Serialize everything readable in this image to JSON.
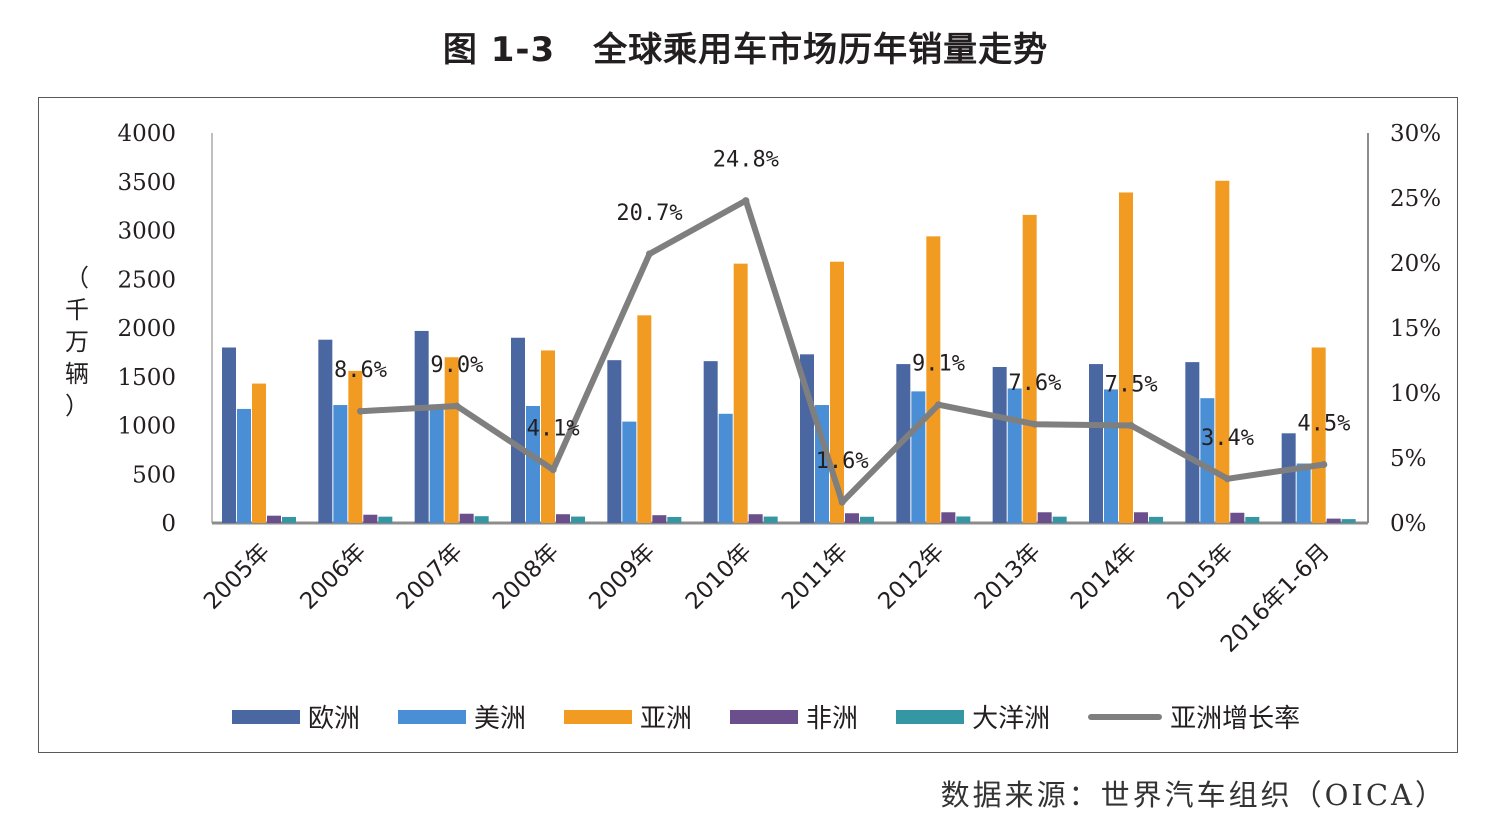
{
  "title": {
    "figure_no": "图 1-3",
    "text": "全球乘用车市场历年销量走势"
  },
  "y_axis_label": [
    "（",
    "千",
    "万",
    "辆",
    "）"
  ],
  "source": "数据来源：世界汽车组织（OICA）",
  "chart_data": {
    "type": "bar+line",
    "title": "全球乘用车市场历年销量走势",
    "categories": [
      "2005年",
      "2006年",
      "2007年",
      "2008年",
      "2009年",
      "2010年",
      "2011年",
      "2012年",
      "2013年",
      "2014年",
      "2015年",
      "2016年1-6月"
    ],
    "ylim": [
      0,
      4000
    ],
    "yticks": [
      "0",
      "500",
      "1000",
      "1500",
      "2000",
      "2500",
      "3000",
      "3500",
      "4000"
    ],
    "y2lim": [
      0,
      30
    ],
    "y2ticks": [
      "0%",
      "5%",
      "10%",
      "15%",
      "20%",
      "25%",
      "30%"
    ],
    "series": [
      {
        "name": "欧洲",
        "type": "bar",
        "color": "#4a67a2",
        "values": [
          1800,
          1880,
          1970,
          1900,
          1670,
          1660,
          1730,
          1630,
          1600,
          1630,
          1650,
          920
        ]
      },
      {
        "name": "美洲",
        "type": "bar",
        "color": "#4a8fd6",
        "values": [
          1170,
          1210,
          1190,
          1200,
          1040,
          1120,
          1210,
          1350,
          1380,
          1370,
          1280,
          610
        ]
      },
      {
        "name": "亚洲",
        "type": "bar",
        "color": "#f29b22",
        "values": [
          1430,
          1560,
          1700,
          1770,
          2130,
          2660,
          2680,
          2940,
          3160,
          3390,
          3510,
          1800
        ]
      },
      {
        "name": "非洲",
        "type": "bar",
        "color": "#6b4f8c",
        "values": [
          75,
          85,
          95,
          90,
          80,
          90,
          100,
          110,
          110,
          110,
          105,
          45
        ]
      },
      {
        "name": "大洋洲",
        "type": "bar",
        "color": "#3597a4",
        "values": [
          62,
          65,
          70,
          66,
          62,
          66,
          64,
          67,
          65,
          63,
          62,
          40
        ]
      },
      {
        "name": "亚洲增长率",
        "type": "line",
        "axis": "right",
        "color": "#7f7f7f",
        "values": [
          null,
          8.6,
          9.0,
          4.1,
          20.7,
          24.8,
          1.6,
          9.1,
          7.6,
          7.5,
          3.4,
          4.5
        ],
        "labels": [
          null,
          "8.6%",
          "9.0%",
          "4.1%",
          "20.7%",
          "24.8%",
          "1.6%",
          "9.1%",
          "7.6%",
          "7.5%",
          "3.4%",
          "4.5%"
        ]
      }
    ]
  }
}
